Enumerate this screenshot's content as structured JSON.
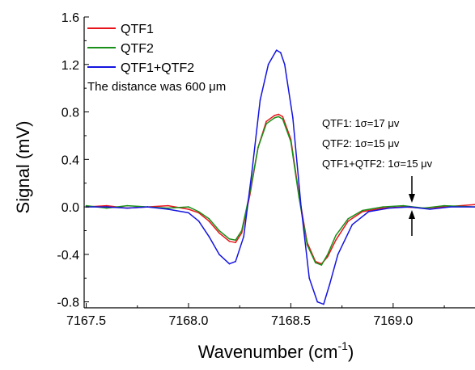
{
  "chart_data": {
    "type": "line",
    "xlabel_main": "Wavenumber (cm",
    "xlabel_sup": "-1",
    "xlabel_close": ")",
    "ylabel": "Signal (mV)",
    "xlim": [
      7167.49,
      7169.4
    ],
    "ylim": [
      -0.85,
      1.6
    ],
    "x_ticks": [
      7167.5,
      7168.0,
      7168.5,
      7169.0
    ],
    "x_tick_labels": [
      "7167.5",
      "7168.0",
      "7168.5",
      "7169.0"
    ],
    "y_ticks": [
      -0.8,
      -0.4,
      0.0,
      0.4,
      0.8,
      1.2,
      1.6
    ],
    "y_tick_labels": [
      "-0.8",
      "-0.4",
      "0.0",
      "0.4",
      "0.8",
      "1.2",
      "1.6"
    ],
    "legend_position": "top-left",
    "grid": false,
    "series": [
      {
        "name": "QTF1",
        "color": "#e8141c",
        "x": [
          7167.5,
          7167.6,
          7167.7,
          7167.8,
          7167.9,
          7168.0,
          7168.05,
          7168.1,
          7168.15,
          7168.2,
          7168.23,
          7168.26,
          7168.3,
          7168.34,
          7168.38,
          7168.42,
          7168.44,
          7168.46,
          7168.5,
          7168.54,
          7168.58,
          7168.62,
          7168.65,
          7168.68,
          7168.72,
          7168.78,
          7168.85,
          7168.95,
          7169.05,
          7169.15,
          7169.25,
          7169.4
        ],
        "values": [
          0.0,
          0.01,
          -0.01,
          0.0,
          0.01,
          -0.02,
          -0.05,
          -0.12,
          -0.22,
          -0.29,
          -0.3,
          -0.22,
          0.1,
          0.5,
          0.72,
          0.77,
          0.78,
          0.76,
          0.57,
          0.1,
          -0.3,
          -0.46,
          -0.48,
          -0.42,
          -0.28,
          -0.12,
          -0.04,
          -0.01,
          0.0,
          -0.01,
          0.0,
          0.02
        ]
      },
      {
        "name": "QTF2",
        "color": "#1a8f1a",
        "x": [
          7167.5,
          7167.6,
          7167.7,
          7167.8,
          7167.9,
          7168.0,
          7168.05,
          7168.1,
          7168.15,
          7168.2,
          7168.23,
          7168.26,
          7168.3,
          7168.34,
          7168.38,
          7168.42,
          7168.44,
          7168.46,
          7168.5,
          7168.54,
          7168.58,
          7168.62,
          7168.65,
          7168.68,
          7168.72,
          7168.78,
          7168.85,
          7168.95,
          7169.05,
          7169.15,
          7169.25,
          7169.4
        ],
        "values": [
          0.01,
          -0.01,
          0.01,
          0.0,
          -0.01,
          0.0,
          -0.04,
          -0.1,
          -0.2,
          -0.27,
          -0.28,
          -0.2,
          0.12,
          0.5,
          0.7,
          0.75,
          0.76,
          0.74,
          0.55,
          0.08,
          -0.32,
          -0.47,
          -0.49,
          -0.4,
          -0.24,
          -0.1,
          -0.03,
          0.0,
          0.01,
          -0.01,
          0.01,
          0.0
        ]
      },
      {
        "name": "QTF1+QTF2",
        "color": "#1414e0",
        "x": [
          7167.5,
          7167.6,
          7167.7,
          7167.8,
          7167.9,
          7168.0,
          7168.05,
          7168.1,
          7168.15,
          7168.2,
          7168.23,
          7168.27,
          7168.31,
          7168.35,
          7168.39,
          7168.43,
          7168.45,
          7168.47,
          7168.51,
          7168.55,
          7168.59,
          7168.63,
          7168.66,
          7168.69,
          7168.73,
          7168.8,
          7168.88,
          7168.98,
          7169.08,
          7169.18,
          7169.28,
          7169.4
        ],
        "values": [
          0.0,
          0.0,
          -0.01,
          0.0,
          -0.02,
          -0.05,
          -0.12,
          -0.25,
          -0.4,
          -0.48,
          -0.46,
          -0.25,
          0.3,
          0.9,
          1.2,
          1.32,
          1.3,
          1.2,
          0.75,
          0.0,
          -0.6,
          -0.8,
          -0.82,
          -0.65,
          -0.4,
          -0.15,
          -0.04,
          -0.01,
          0.0,
          -0.02,
          0.0,
          0.0
        ]
      }
    ],
    "annotations": {
      "distance_note": "The distance was 600 μm",
      "noise_lines": [
        "QTF1: 1σ=17 μv",
        "QTF2: 1σ=15 μv",
        "QTF1+QTF2: 1σ=15 μv"
      ]
    }
  }
}
